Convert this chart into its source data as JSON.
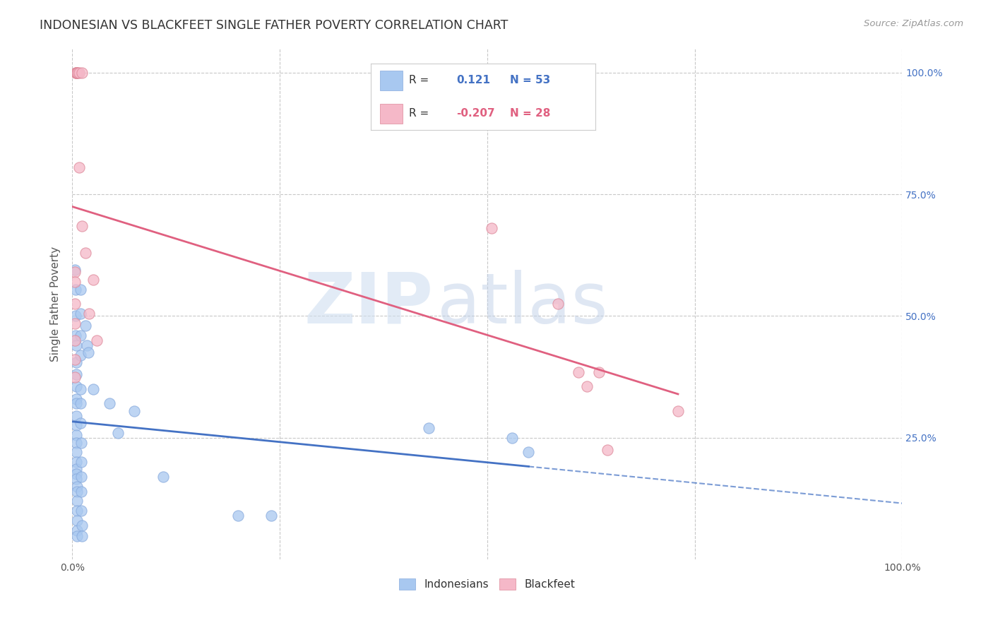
{
  "title": "INDONESIAN VS BLACKFEET SINGLE FATHER POVERTY CORRELATION CHART",
  "source": "Source: ZipAtlas.com",
  "ylabel": "Single Father Poverty",
  "watermark": "ZIPatlas",
  "legend": {
    "indonesian_label": "Indonesians",
    "blackfeet_label": "Blackfeet",
    "R_indonesian": "0.121",
    "N_indonesian": "53",
    "R_blackfeet": "-0.207",
    "N_blackfeet": "28"
  },
  "indonesian_color": "#a8c8f0",
  "blackfeet_color": "#f5b8c8",
  "trend_indonesian_color": "#4472c4",
  "trend_blackfeet_color": "#e06080",
  "indonesian_scatter": [
    [
      0.003,
      0.595
    ],
    [
      0.004,
      0.555
    ],
    [
      0.004,
      0.5
    ],
    [
      0.004,
      0.46
    ],
    [
      0.005,
      0.44
    ],
    [
      0.005,
      0.405
    ],
    [
      0.005,
      0.38
    ],
    [
      0.005,
      0.355
    ],
    [
      0.005,
      0.33
    ],
    [
      0.005,
      0.32
    ],
    [
      0.005,
      0.295
    ],
    [
      0.005,
      0.275
    ],
    [
      0.005,
      0.255
    ],
    [
      0.005,
      0.24
    ],
    [
      0.005,
      0.22
    ],
    [
      0.005,
      0.2
    ],
    [
      0.005,
      0.185
    ],
    [
      0.005,
      0.175
    ],
    [
      0.005,
      0.165
    ],
    [
      0.006,
      0.15
    ],
    [
      0.006,
      0.14
    ],
    [
      0.006,
      0.12
    ],
    [
      0.006,
      0.1
    ],
    [
      0.006,
      0.08
    ],
    [
      0.006,
      0.06
    ],
    [
      0.006,
      0.048
    ],
    [
      0.01,
      0.555
    ],
    [
      0.01,
      0.505
    ],
    [
      0.01,
      0.46
    ],
    [
      0.01,
      0.42
    ],
    [
      0.01,
      0.35
    ],
    [
      0.01,
      0.32
    ],
    [
      0.01,
      0.28
    ],
    [
      0.011,
      0.24
    ],
    [
      0.011,
      0.2
    ],
    [
      0.011,
      0.17
    ],
    [
      0.011,
      0.14
    ],
    [
      0.011,
      0.1
    ],
    [
      0.012,
      0.07
    ],
    [
      0.012,
      0.048
    ],
    [
      0.016,
      0.48
    ],
    [
      0.018,
      0.44
    ],
    [
      0.019,
      0.425
    ],
    [
      0.025,
      0.35
    ],
    [
      0.045,
      0.32
    ],
    [
      0.055,
      0.26
    ],
    [
      0.075,
      0.305
    ],
    [
      0.11,
      0.17
    ],
    [
      0.2,
      0.09
    ],
    [
      0.24,
      0.09
    ],
    [
      0.43,
      0.27
    ],
    [
      0.53,
      0.25
    ],
    [
      0.55,
      0.22
    ]
  ],
  "blackfeet_scatter": [
    [
      0.003,
      0.59
    ],
    [
      0.003,
      0.57
    ],
    [
      0.003,
      0.525
    ],
    [
      0.003,
      0.485
    ],
    [
      0.003,
      0.45
    ],
    [
      0.003,
      0.41
    ],
    [
      0.003,
      0.375
    ],
    [
      0.004,
      1.0
    ],
    [
      0.005,
      1.0
    ],
    [
      0.005,
      1.0
    ],
    [
      0.005,
      1.0
    ],
    [
      0.006,
      1.0
    ],
    [
      0.007,
      1.0
    ],
    [
      0.008,
      1.0
    ],
    [
      0.012,
      1.0
    ],
    [
      0.008,
      0.805
    ],
    [
      0.012,
      0.685
    ],
    [
      0.016,
      0.63
    ],
    [
      0.025,
      0.575
    ],
    [
      0.02,
      0.505
    ],
    [
      0.03,
      0.45
    ],
    [
      0.505,
      0.68
    ],
    [
      0.585,
      0.525
    ],
    [
      0.61,
      0.385
    ],
    [
      0.62,
      0.355
    ],
    [
      0.635,
      0.385
    ],
    [
      0.645,
      0.225
    ],
    [
      0.73,
      0.305
    ]
  ],
  "xlim": [
    0,
    1.0
  ],
  "ylim": [
    0,
    1.05
  ],
  "ytick_positions": [
    0.25,
    0.5,
    0.75,
    1.0
  ],
  "ytick_labels": [
    "25.0%",
    "50.0%",
    "75.0%",
    "100.0%"
  ],
  "background_color": "#ffffff",
  "grid_color": "#c8c8c8"
}
